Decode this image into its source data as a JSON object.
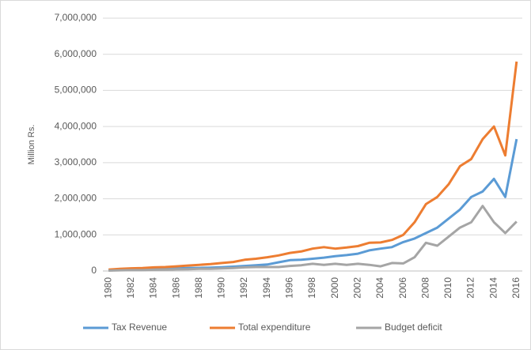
{
  "chart_data": {
    "type": "line",
    "y_label": "Million Rs.",
    "categories": [
      "1980",
      null,
      "1982",
      null,
      "1984",
      null,
      "1986",
      null,
      "1988",
      null,
      "1990",
      null,
      "1992",
      null,
      "1994",
      null,
      "1996",
      null,
      "1998",
      null,
      "2000",
      null,
      "2002",
      null,
      "2004",
      null,
      "2006",
      null,
      "2008",
      null,
      "2010",
      null,
      "2012",
      null,
      "2014",
      null,
      "2016"
    ],
    "series": [
      {
        "name": "Tax Revenue",
        "color": "#5b9bd5",
        "values": [
          30000,
          40000,
          45000,
          50000,
          60000,
          65000,
          70000,
          80000,
          85000,
          95000,
          105000,
          120000,
          140000,
          160000,
          180000,
          240000,
          300000,
          310000,
          340000,
          370000,
          410000,
          440000,
          480000,
          570000,
          620000,
          660000,
          800000,
          900000,
          1050000,
          1200000,
          1450000,
          1700000,
          2050000,
          2200000,
          2550000,
          2050000,
          3650000
        ]
      },
      {
        "name": "Total expenditure",
        "color": "#ed7d31",
        "values": [
          40000,
          60000,
          75000,
          80000,
          100000,
          110000,
          130000,
          150000,
          170000,
          190000,
          220000,
          250000,
          310000,
          340000,
          380000,
          430000,
          500000,
          540000,
          620000,
          660000,
          620000,
          650000,
          690000,
          780000,
          790000,
          860000,
          1000000,
          1350000,
          1850000,
          2050000,
          2400000,
          2900000,
          3100000,
          3650000,
          4000000,
          3200000,
          5800000
        ]
      },
      {
        "name": "Budget deficit",
        "color": "#a5a5a5",
        "values": [
          10000,
          20000,
          25000,
          25000,
          35000,
          40000,
          45000,
          50000,
          60000,
          60000,
          70000,
          80000,
          100000,
          110000,
          110000,
          110000,
          140000,
          160000,
          200000,
          170000,
          200000,
          170000,
          200000,
          170000,
          130000,
          220000,
          210000,
          380000,
          780000,
          700000,
          950000,
          1200000,
          1350000,
          1800000,
          1350000,
          1050000,
          1370000
        ]
      }
    ],
    "ylim": [
      0,
      7000000
    ],
    "yticks": [
      0,
      {
        "value": 1000000,
        "label": "1,000,000"
      },
      {
        "value": 2000000,
        "label": "2,000,000"
      },
      {
        "value": 3000000,
        "label": "3,000,000"
      },
      {
        "value": 4000000,
        "label": "4,000,000"
      },
      {
        "value": 5000000,
        "label": "5,000,000"
      },
      {
        "value": 6000000,
        "label": "6,000,000"
      },
      {
        "value": 7000000,
        "label": "7,000,000"
      }
    ],
    "grid": true,
    "legend": "bottom"
  }
}
